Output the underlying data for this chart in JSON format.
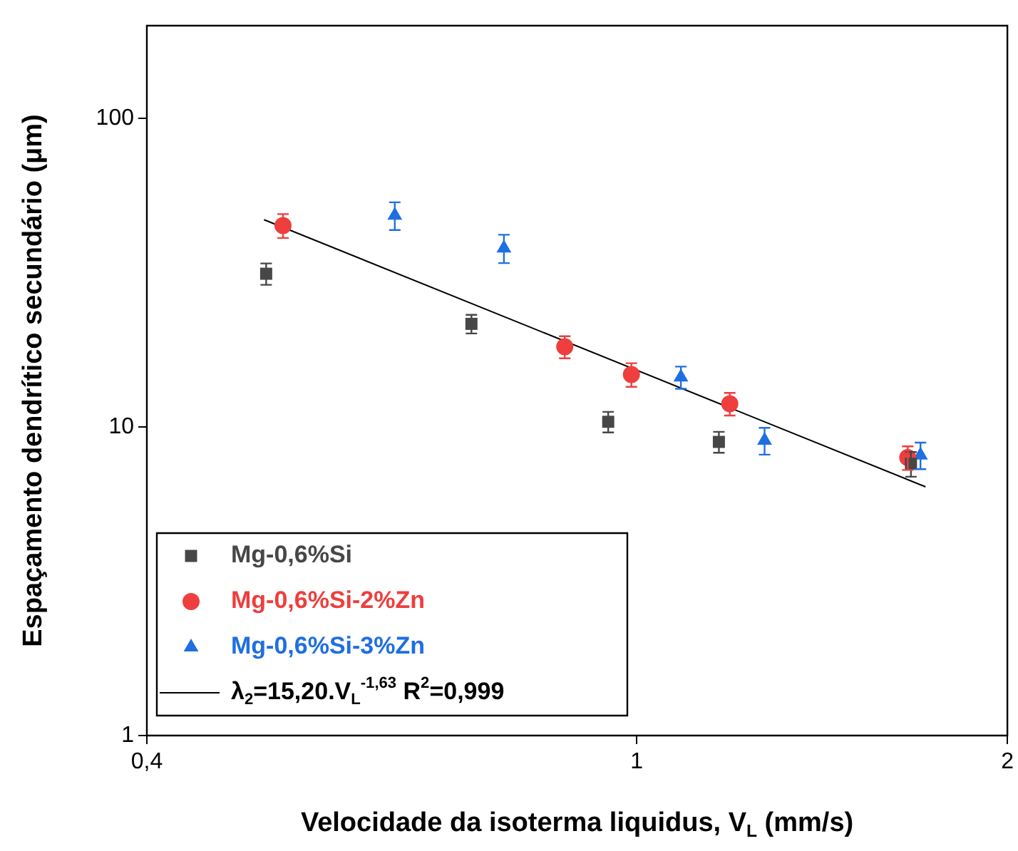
{
  "chart_data": {
    "type": "scatter",
    "xlabel": "Velocidade da isoterma liquidus, V$_{L}$ (mm/s)",
    "ylabel": "Espaçamento dendrítico secundário (μm)",
    "log": "xy",
    "xlim": [
      0.4,
      2
    ],
    "xticks": [
      {
        "value": 0.4,
        "label": "0,4"
      },
      1,
      2
    ],
    "ylim": [
      1,
      200
    ],
    "yticks": [
      1,
      10,
      100
    ],
    "grid": false,
    "legend": "bottom left",
    "series": [
      {
        "name": "Mg-0,6%Si",
        "marker": "square",
        "color": "#474747",
        "x": [
          0.5,
          0.734,
          0.948,
          1.166,
          1.67
        ],
        "values": [
          31.4,
          21.6,
          10.4,
          8.95,
          7.6
        ],
        "errors": [
          2.5,
          1.5,
          0.8,
          0.7,
          0.7
        ]
      },
      {
        "name": "Mg-0,6%Si-2%Zn",
        "marker": "circle",
        "color": "#ee3e3e",
        "x": [
          0.516,
          0.874,
          0.99,
          1.19,
          1.66
        ],
        "values": [
          45,
          18.2,
          14.8,
          11.9,
          7.96
        ],
        "errors": [
          4,
          1.5,
          1.3,
          1,
          0.7
        ]
      },
      {
        "name": "Mg-0,6%Si-3%Zn",
        "marker": "triangle",
        "color": "#1f6fe0",
        "x": [
          0.636,
          0.78,
          1.086,
          1.27,
          1.7
        ],
        "values": [
          48.5,
          38,
          14.5,
          9.04,
          8.1
        ],
        "errors": [
          5,
          4,
          1.2,
          0.9,
          0.8
        ]
      },
      {
        "name": "λ$_{2}$=15,20.V$_{L}$$^{-1,63}$ R$^{2}$=0,999",
        "type": "line",
        "marker": "none",
        "color": "#000000",
        "x": [
          0.498,
          1.716
        ],
        "values": [
          47,
          6.4
        ]
      }
    ]
  }
}
